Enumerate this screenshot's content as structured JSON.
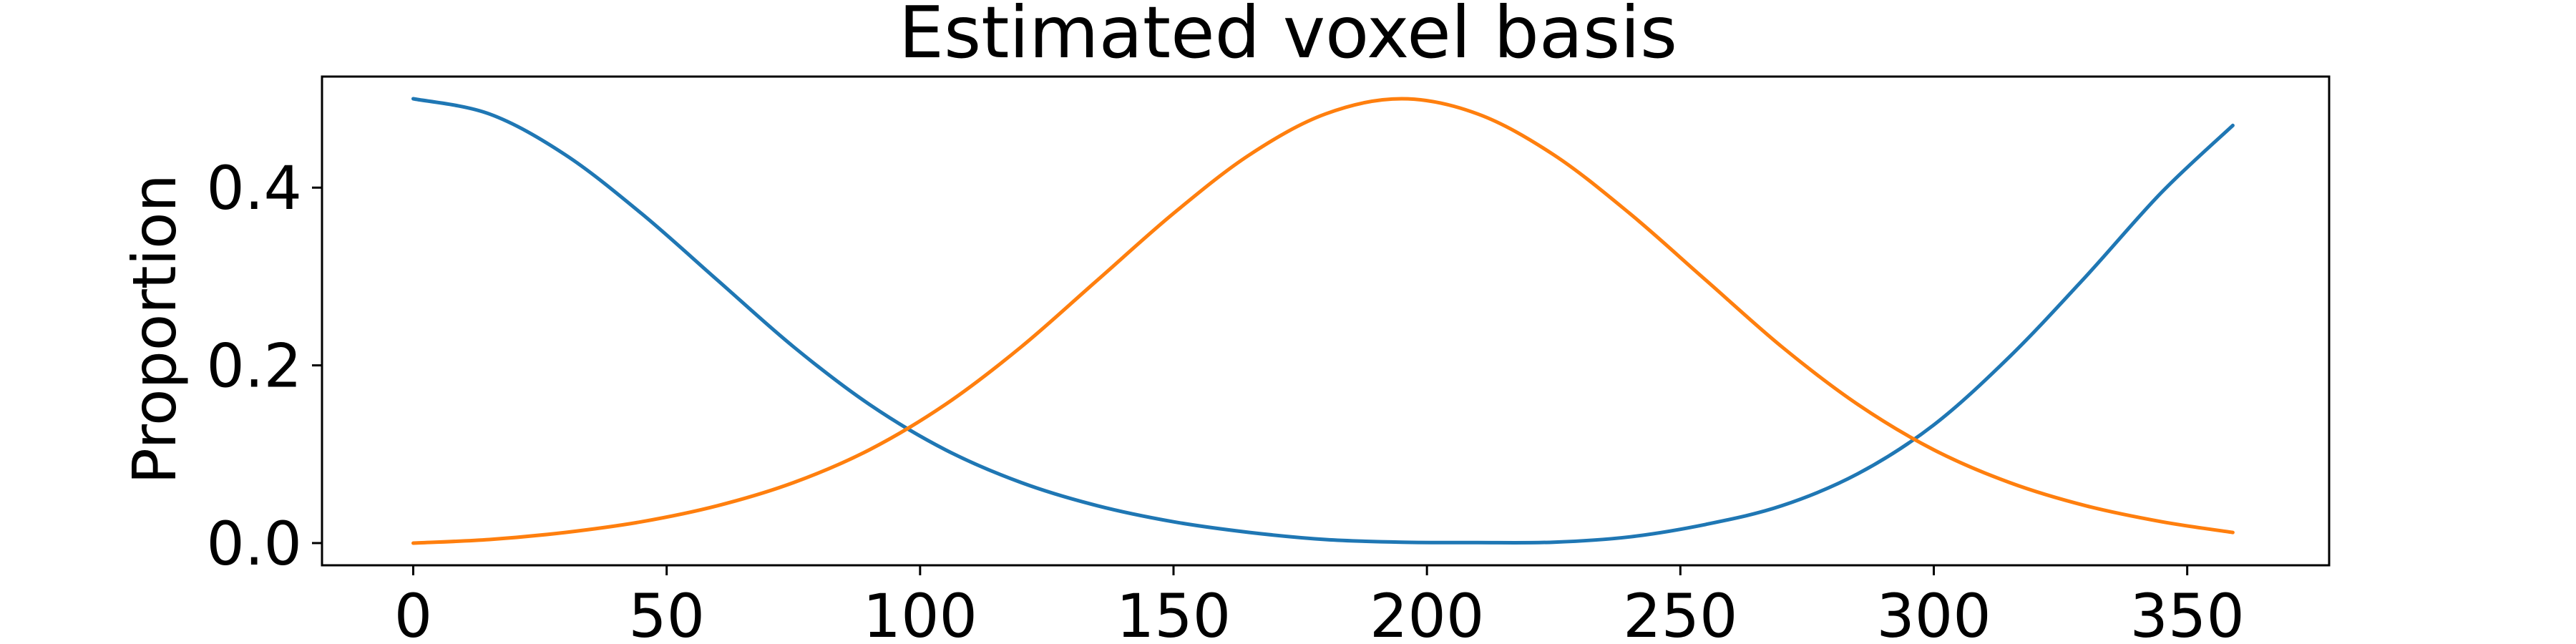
{
  "chart_data": {
    "type": "line",
    "title": "Estimated voxel basis",
    "xlabel": "",
    "ylabel": "Proportion",
    "xlim": [
      -18,
      378
    ],
    "ylim": [
      -0.025,
      0.525
    ],
    "xticks": [
      0,
      50,
      100,
      150,
      200,
      250,
      300,
      350
    ],
    "yticks": [
      0.0,
      0.2,
      0.4
    ],
    "ytick_labels": [
      "0.0",
      "0.2",
      "0.4"
    ],
    "grid": false,
    "legend": "none",
    "series": [
      {
        "color": "#1f77b4",
        "x": [
          0,
          15,
          30,
          45,
          60,
          75,
          90,
          105,
          120,
          135,
          150,
          165,
          180,
          195,
          210,
          225,
          240,
          255,
          270,
          285,
          300,
          315,
          330,
          345,
          359
        ],
        "y": [
          0.5,
          0.483,
          0.437,
          0.371,
          0.296,
          0.221,
          0.156,
          0.105,
          0.068,
          0.042,
          0.024,
          0.012,
          0.004,
          0.001,
          0.0005,
          0.001,
          0.007,
          0.021,
          0.042,
          0.078,
          0.133,
          0.21,
          0.3,
          0.395,
          0.47
        ]
      },
      {
        "color": "#ff7f0e",
        "x": [
          0,
          15,
          30,
          45,
          60,
          75,
          90,
          105,
          120,
          135,
          150,
          165,
          180,
          195,
          210,
          225,
          240,
          255,
          270,
          285,
          300,
          315,
          330,
          345,
          359
        ],
        "y": [
          0.0,
          0.004,
          0.012,
          0.024,
          0.042,
          0.068,
          0.105,
          0.156,
          0.221,
          0.296,
          0.371,
          0.437,
          0.483,
          0.5,
          0.483,
          0.437,
          0.371,
          0.296,
          0.221,
          0.156,
          0.105,
          0.068,
          0.042,
          0.024,
          0.012
        ]
      }
    ]
  }
}
